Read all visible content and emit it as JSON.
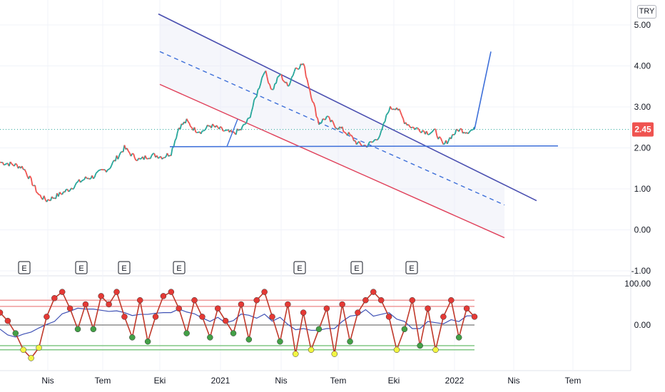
{
  "currency": "TRY",
  "current_price_label": "2.45",
  "colors": {
    "up": "#26a69a",
    "down": "#ef5350",
    "trend_upper": "#4a4fb0",
    "trend_mid": "#3d6fd9",
    "trend_lower": "#e0405a",
    "support": "#3d6fd9",
    "price_tag": "#ef5350",
    "osc_line": "#c0392b",
    "osc_signal": "#3f51b5",
    "osc_high_dot": "#e53935",
    "osc_low_dot": "#43a047",
    "osc_extreme_dot": "#f2f542"
  },
  "earnings_marker": "E",
  "chart_data": [
    {
      "type": "line",
      "panel": "price",
      "title": "",
      "y_ticks": [
        "5.00",
        "4.00",
        "3.00",
        "2.00",
        "1.00",
        "0.00",
        "-1.00"
      ],
      "ylim": [
        -1.0,
        5.0
      ],
      "x_ticks": [
        "Nis",
        "Tem",
        "Eki",
        "2021",
        "Nis",
        "Tem",
        "Eki",
        "2022",
        "Nis",
        "Tem"
      ],
      "series": [
        {
          "values": [
            1.65,
            1.62,
            1.58,
            1.52,
            1.2,
            0.85,
            0.72,
            0.8,
            0.9,
            1.0,
            1.15,
            1.25,
            1.3,
            1.42,
            1.5,
            1.75,
            2.0,
            1.82,
            1.7,
            1.8,
            1.82,
            1.78,
            1.88,
            2.5,
            2.65,
            2.45,
            2.4,
            2.55,
            2.48,
            2.4,
            2.35,
            2.45,
            2.7,
            3.3,
            3.9,
            3.4,
            3.8,
            3.5,
            3.95,
            4.05,
            3.3,
            2.6,
            2.75,
            2.55,
            2.45,
            2.3,
            2.1,
            2.05,
            2.15,
            2.35,
            2.95,
            3.0,
            2.65,
            2.5,
            2.45,
            2.38,
            2.4,
            2.05,
            2.28,
            2.45,
            2.4,
            2.45
          ]
        }
      ],
      "trend_channel": {
        "upper": {
          "from": [
            "Eki",
            5.25
          ],
          "to": [
            "2022",
            1.7
          ]
        },
        "middle": {
          "from": [
            "Eki",
            4.35
          ],
          "to": [
            "2022",
            1.15
          ]
        },
        "lower": {
          "from": [
            "Eki",
            3.55
          ],
          "to": [
            "2022",
            0.35
          ]
        }
      },
      "support_level": 2.03,
      "current_price": 2.45,
      "target_projection": {
        "from": 2.45,
        "to": 4.35
      },
      "earnings_markers_at": [
        "Nis",
        "Tem",
        "Tem",
        "Eki",
        "Nis",
        "Tem",
        "Eki"
      ]
    },
    {
      "type": "line",
      "panel": "oscillator",
      "y_ticks": [
        "100.00",
        "0.00"
      ],
      "ylim": [
        -100,
        100
      ],
      "series": [
        {
          "values": [
            30,
            10,
            -20,
            -60,
            -80,
            -55,
            20,
            65,
            80,
            40,
            -10,
            50,
            -10,
            70,
            50,
            80,
            20,
            -30,
            60,
            -40,
            20,
            70,
            80,
            40,
            -20,
            60,
            20,
            -30,
            40,
            10,
            -20,
            50,
            -35,
            60,
            80,
            20,
            -40,
            50,
            -70,
            30,
            -60,
            -10,
            40,
            -70,
            50,
            -40,
            30,
            60,
            80,
            60,
            20,
            -60,
            -10,
            60,
            -50,
            40,
            -60,
            20,
            60,
            -30,
            40,
            20
          ]
        }
      ],
      "levels": [
        60,
        45,
        -50,
        -60,
        0
      ]
    }
  ]
}
